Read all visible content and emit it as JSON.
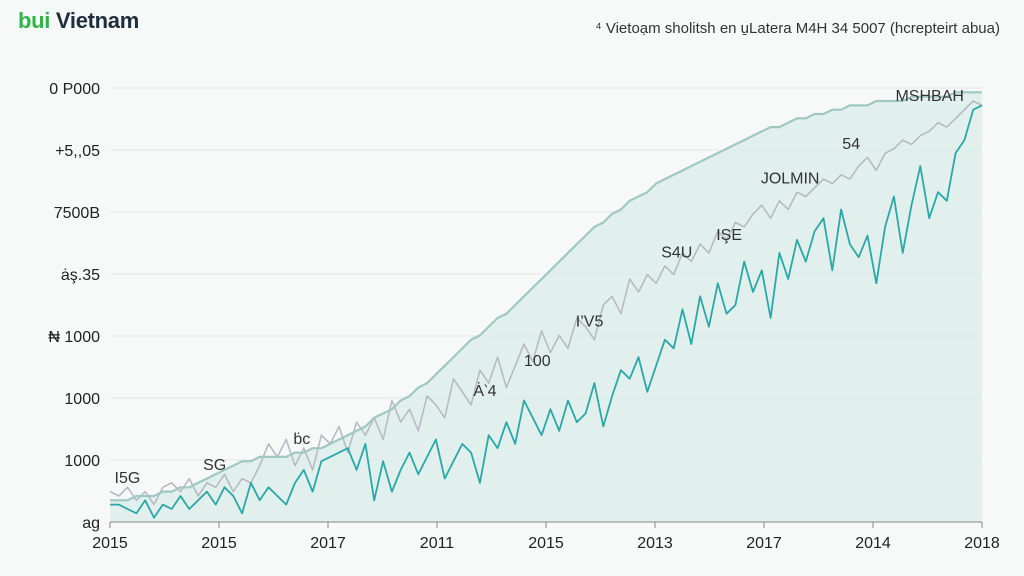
{
  "header": {
    "brand_part1": "bui",
    "brand_part2": " Vietnam",
    "subtitle": "⁴ Vietoạm sholitsh en u̱Latera M4H 34 5007 (hcrepteirt abua)"
  },
  "colors": {
    "brand_green": "#2fb34a",
    "brand_dark": "#1f2d3d",
    "series_teal": "#2aa8a8",
    "series_gray": "#b9b9c6",
    "trend": "#9fc8c2",
    "area_fill": "#d9eeea"
  },
  "chart_data": {
    "type": "line",
    "title": "",
    "xlabel": "",
    "ylabel": "",
    "x_tick_labels": [
      "2015",
      "2015",
      "2017",
      "2011",
      "2015",
      "2013",
      "2017",
      "2014",
      "2018"
    ],
    "y_tick_labels": [
      "ag",
      "1000",
      "1000",
      "₦ 1000",
      "ȧş.35",
      "7500B",
      "+5,,05",
      "0 P000"
    ],
    "xlim": [
      0,
      100
    ],
    "ylim": [
      0,
      100
    ],
    "grid": true,
    "series": [
      {
        "name": "teal",
        "values": [
          4,
          4,
          3,
          2,
          5,
          1,
          4,
          3,
          6,
          3,
          5,
          7,
          4,
          8,
          6,
          2,
          9,
          5,
          8,
          6,
          4,
          9,
          12,
          7,
          14,
          15,
          16,
          17,
          12,
          18,
          5,
          14,
          7,
          12,
          16,
          11,
          15,
          19,
          10,
          14,
          18,
          16,
          9,
          20,
          17,
          23,
          18,
          28,
          24,
          20,
          26,
          21,
          28,
          23,
          25,
          32,
          22,
          29,
          35,
          33,
          38,
          30,
          36,
          42,
          40,
          49,
          41,
          52,
          45,
          55,
          48,
          50,
          60,
          53,
          58,
          47,
          62,
          56,
          65,
          60,
          67,
          70,
          58,
          72,
          64,
          61,
          66,
          55,
          68,
          75,
          62,
          73,
          82,
          70,
          76,
          74,
          85,
          88,
          95,
          96
        ]
      },
      {
        "name": "gray",
        "values": [
          7,
          6,
          8,
          5,
          7,
          4,
          8,
          9,
          7,
          10,
          6,
          9,
          8,
          11,
          7,
          10,
          9,
          13,
          18,
          15,
          19,
          13,
          17,
          12,
          20,
          18,
          22,
          16,
          23,
          20,
          24,
          19,
          28,
          23,
          26,
          21,
          29,
          27,
          24,
          33,
          30,
          27,
          35,
          32,
          38,
          31,
          36,
          41,
          37,
          44,
          39,
          43,
          40,
          47,
          45,
          42,
          50,
          52,
          48,
          56,
          53,
          57,
          55,
          59,
          57,
          62,
          60,
          64,
          62,
          67,
          65,
          69,
          68,
          71,
          73,
          70,
          74,
          72,
          76,
          75,
          77,
          79,
          78,
          80,
          79,
          82,
          84,
          81,
          85,
          86,
          88,
          87,
          89,
          90,
          92,
          91,
          93,
          95,
          97,
          96
        ]
      },
      {
        "name": "trend",
        "values": [
          5,
          5,
          5,
          6,
          6,
          6,
          7,
          7,
          8,
          8,
          9,
          10,
          11,
          12,
          13,
          14,
          14,
          15,
          15,
          15,
          15,
          16,
          16,
          17,
          17,
          18,
          19,
          20,
          21,
          22,
          24,
          25,
          26,
          28,
          29,
          31,
          32,
          34,
          36,
          38,
          40,
          42,
          43,
          45,
          47,
          48,
          50,
          52,
          54,
          56,
          58,
          60,
          62,
          64,
          66,
          68,
          69,
          71,
          72,
          74,
          75,
          76,
          78,
          79,
          80,
          81,
          82,
          83,
          84,
          85,
          86,
          87,
          88,
          89,
          90,
          91,
          91,
          92,
          93,
          93,
          94,
          94,
          95,
          95,
          96,
          96,
          96,
          97,
          97,
          97,
          97,
          98,
          98,
          98,
          98,
          98,
          99,
          99,
          99,
          99
        ]
      }
    ],
    "annotations": [
      {
        "text": "I5G",
        "x": 2,
        "y": 9
      },
      {
        "text": "SG",
        "x": 12,
        "y": 12
      },
      {
        "text": "ḃc",
        "x": 22,
        "y": 18
      },
      {
        "text": "Ȧ‵4",
        "x": 43,
        "y": 29
      },
      {
        "text": "100",
        "x": 49,
        "y": 36
      },
      {
        "text": "I’V5",
        "x": 55,
        "y": 45
      },
      {
        "text": "S4U",
        "x": 65,
        "y": 61
      },
      {
        "text": "IŞE",
        "x": 71,
        "y": 65
      },
      {
        "text": "JOLMIN",
        "x": 78,
        "y": 78
      },
      {
        "text": "54",
        "x": 85,
        "y": 86
      },
      {
        "text": "MSHBAH",
        "x": 94,
        "y": 97
      }
    ]
  }
}
